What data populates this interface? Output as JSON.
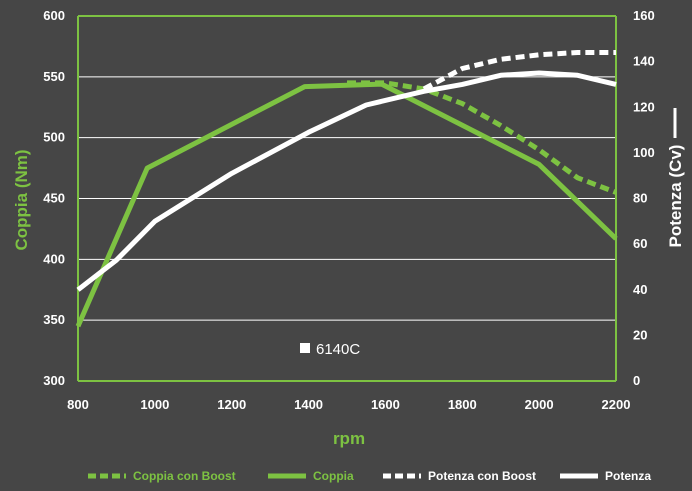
{
  "chart_data": {
    "type": "line",
    "xlabel": "rpm",
    "ylabel_left": "Coppia (Nm)",
    "ylabel_right": "Potenza (Cv)",
    "x_ticks": [
      800,
      1000,
      1200,
      1400,
      1600,
      1800,
      2000,
      2200
    ],
    "y_left_ticks": [
      300,
      350,
      400,
      450,
      500,
      550,
      600
    ],
    "y_right_ticks": [
      0,
      20,
      40,
      60,
      80,
      100,
      120,
      140,
      160
    ],
    "xlim": [
      800,
      2200
    ],
    "ylim_left": [
      300,
      600
    ],
    "ylim_right": [
      0,
      160
    ],
    "grid": "horizontal",
    "legend_position": "bottom",
    "annotation": "6140C",
    "colors": {
      "background": "#464646",
      "green": "#7dc242",
      "white": "#ffffff"
    },
    "series": [
      {
        "name": "Coppia con Boost",
        "axis": "left",
        "style": "dashed",
        "color": "#7dc242",
        "x": [
          1500,
          1600,
          1700,
          1800,
          1900,
          2000,
          2100,
          2200
        ],
        "y": [
          545,
          545,
          540,
          528,
          510,
          490,
          467,
          455
        ]
      },
      {
        "name": "Coppia",
        "axis": "left",
        "style": "solid",
        "color": "#7dc242",
        "x": [
          800,
          980,
          1390,
          1590,
          2000,
          2200
        ],
        "y": [
          345,
          475,
          542,
          544,
          478,
          417
        ]
      },
      {
        "name": "Potenza con Boost",
        "axis": "right",
        "style": "dashed",
        "color": "#ffffff",
        "x": [
          1700,
          1800,
          1900,
          2000,
          2100,
          2200
        ],
        "y": [
          128,
          137,
          141,
          143,
          144,
          144
        ]
      },
      {
        "name": "Potenza",
        "axis": "right",
        "style": "solid",
        "color": "#ffffff",
        "x": [
          800,
          900,
          1000,
          1200,
          1400,
          1550,
          1700,
          1800,
          1900,
          2000,
          2100,
          2200
        ],
        "y": [
          40,
          53,
          70,
          91,
          109,
          121,
          127,
          130,
          134,
          135,
          134,
          130
        ]
      }
    ]
  }
}
